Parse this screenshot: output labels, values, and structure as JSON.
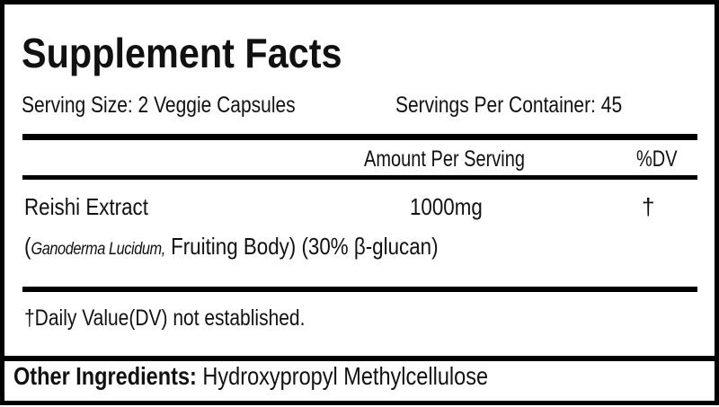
{
  "title": "Supplement Facts",
  "serving_size": "Serving Size: 2 Veggie Capsules",
  "servings_per_container": "Servings Per Container: 45",
  "header": {
    "amount": "Amount Per Serving",
    "dv": "%DV"
  },
  "ingredient": {
    "name": "Reishi Extract",
    "amount": "1000mg",
    "dv": "†",
    "source_italic": "Ganoderma Lucidum,",
    "source_open": "(",
    "source_rest": " Fruiting Body) (30% β-glucan)"
  },
  "footnote": "†Daily Value(DV) not established.",
  "other_ingredients": {
    "label": "Other Ingredients:",
    "value": "Hydroxypropyl Methylcellulose"
  }
}
